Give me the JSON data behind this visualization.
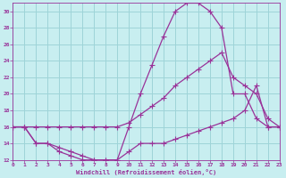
{
  "xlabel": "Windchill (Refroidissement éolien,°C)",
  "bg_color": "#c8eef0",
  "grid_color": "#9ed4d8",
  "line_color": "#993399",
  "markersize": 2.5,
  "linewidth": 0.9,
  "xlim": [
    0,
    23
  ],
  "ylim": [
    12,
    31
  ],
  "yticks": [
    12,
    14,
    16,
    18,
    20,
    22,
    24,
    26,
    28,
    30
  ],
  "xticks": [
    0,
    1,
    2,
    3,
    4,
    5,
    6,
    7,
    8,
    9,
    10,
    11,
    12,
    13,
    14,
    15,
    16,
    17,
    18,
    19,
    20,
    21,
    22,
    23
  ],
  "curve1_x": [
    0,
    1,
    2,
    3,
    4,
    5,
    6,
    7,
    8,
    9,
    10,
    11,
    12,
    13,
    14,
    15,
    16,
    17,
    18,
    19,
    20,
    21,
    22,
    23
  ],
  "curve1_y": [
    16,
    16,
    14,
    14,
    13,
    12.5,
    12,
    12,
    12,
    12,
    16,
    20,
    23.5,
    27,
    30,
    31,
    31,
    30,
    28,
    20,
    20,
    17,
    16,
    16
  ],
  "curve2_x": [
    0,
    1,
    2,
    3,
    4,
    5,
    6,
    7,
    8,
    9,
    10,
    11,
    12,
    13,
    14,
    15,
    16,
    17,
    18,
    19,
    20,
    21,
    22,
    23
  ],
  "curve2_y": [
    16,
    16,
    16,
    16,
    16,
    16,
    16,
    16,
    16,
    16,
    16.5,
    17.5,
    18.5,
    19.5,
    21,
    22,
    23,
    24,
    25,
    22,
    21,
    20,
    17,
    16
  ],
  "curve3_x": [
    0,
    1,
    2,
    3,
    4,
    5,
    6,
    7,
    8,
    9,
    10,
    11,
    12,
    13,
    14,
    15,
    16,
    17,
    18,
    19,
    20,
    21,
    22,
    23
  ],
  "curve3_y": [
    16,
    16,
    14,
    14,
    13.5,
    13,
    12.5,
    12,
    12,
    12,
    13,
    14,
    14,
    14,
    14.5,
    15,
    15.5,
    16,
    16.5,
    17,
    18,
    21,
    16,
    16
  ]
}
